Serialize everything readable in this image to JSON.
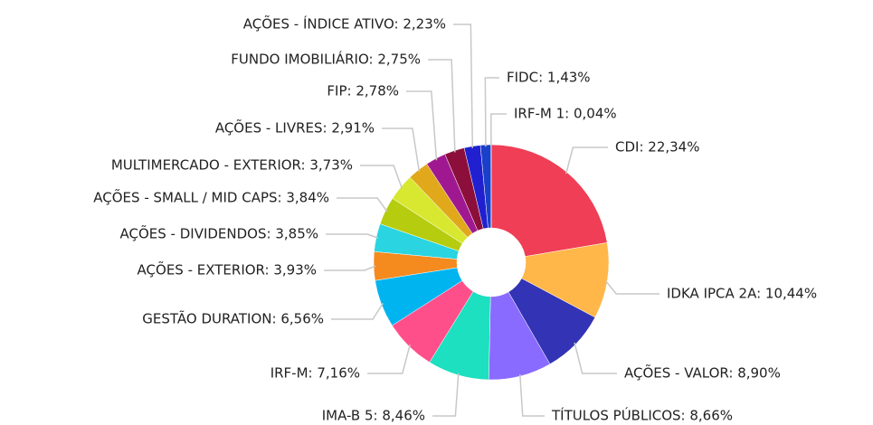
{
  "chart_data": {
    "type": "donut",
    "values": [
      22.34,
      10.44,
      8.9,
      8.66,
      8.46,
      7.16,
      6.56,
      3.93,
      3.85,
      3.84,
      3.73,
      2.91,
      2.78,
      2.75,
      2.23,
      1.43,
      0.04
    ],
    "value_labels": [
      "CDI: 22,34%",
      "IDKA IPCA 2A: 10,44%",
      "AÇÕES - VALOR: 8,90%",
      "TÍTULOS PÚBLICOS: 8,66%",
      "IMA-B 5: 8,46%",
      "IRF-M: 7,16%",
      "GESTÃO DURATION: 6,56%",
      "AÇÕES - EXTERIOR: 3,93%",
      "AÇÕES - DIVIDENDOS: 3,85%",
      "AÇÕES - SMALL / MID CAPS: 3,84%",
      "MULTIMERCADO - EXTERIOR: 3,73%",
      "AÇÕES - LIVRES: 2,91%",
      "FIP: 2,78%",
      "FUNDO IMOBILIÁRIO: 2,75%",
      "AÇÕES - ÍNDICE ATIVO: 2,23%",
      "FIDC: 1,43%",
      "IRF-M 1: 0,04%"
    ],
    "colors": [
      "#ef3e55",
      "#ffb74a",
      "#3333b5",
      "#8a6bff",
      "#1de0c0",
      "#ff4f8b",
      "#00b4f0",
      "#f58a1f",
      "#2ad4e0",
      "#b5cc0f",
      "#d8e830",
      "#e0a81a",
      "#a01890",
      "#8b0f3a",
      "#2020d0",
      "#1a3fc8",
      "#0030a0"
    ]
  }
}
